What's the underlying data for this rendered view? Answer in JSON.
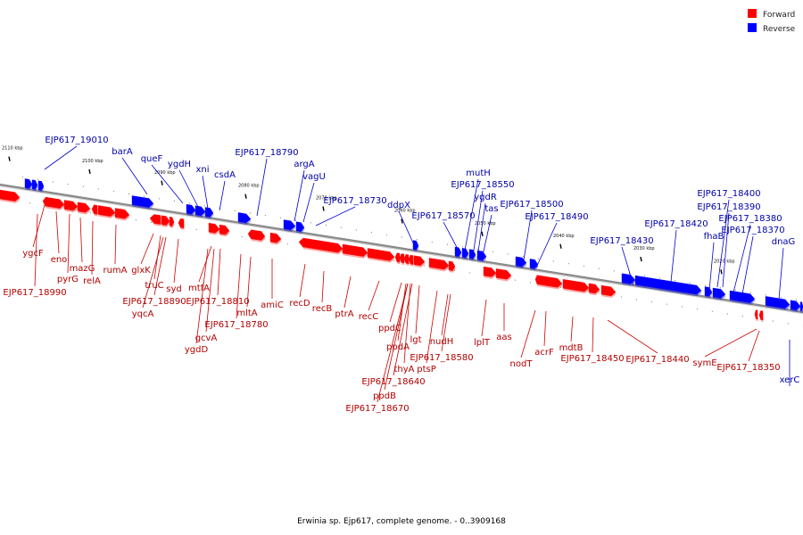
{
  "caption": "Erwinia sp. Ejp617, complete genome. - 0..3909168",
  "legend": {
    "items": [
      {
        "label": "Forward",
        "color": "#ff0000"
      },
      {
        "label": "Reverse",
        "color": "#0000ff"
      }
    ]
  },
  "colors": {
    "forward": "#ff0000",
    "reverse": "#0000ff",
    "forward_line": "#cc0000",
    "reverse_line": "#0000cc",
    "backbone": "#8a8a8a"
  },
  "scale_ticks": [
    "2110 kbp",
    "2100 kbp",
    "2090 kbp",
    "2080 kbp",
    "2070 kbp",
    "2060 kbp",
    "2050 kbp",
    "2040 kbp",
    "2030 kbp",
    "2020 kbp"
  ],
  "reverse_genes": [
    "EJP617_19010",
    "barA",
    "queF",
    "ygdH",
    "xni",
    "csdA",
    "EJP617_18790",
    "argA",
    "vagU",
    "EJP617_18730",
    "ddpX",
    "mutH",
    "EJP617_18550",
    "ygdR",
    "tas",
    "EJP617_18570",
    "EJP617_18500",
    "EJP617_18490",
    "EJP617_18400",
    "EJP617_18390",
    "EJP617_18380",
    "EJP617_18370",
    "EJP617_18420",
    "fhaB",
    "dnaG",
    "EJP617_18430",
    "xerC"
  ],
  "forward_genes": [
    "ygcF",
    "eno",
    "EJP617_18990",
    "pyrG",
    "mazG",
    "relA",
    "rumA",
    "glxK",
    "truC",
    "syd",
    "EJP617_18890",
    "yqcA",
    "mtfA",
    "EJP617_18810",
    "gcvA",
    "ygdD",
    "mltA",
    "EJP617_18780",
    "amiC",
    "recD",
    "recB",
    "ptrA",
    "recC",
    "ppdC",
    "ppdA",
    "lgt",
    "thyA",
    "ptsP",
    "EJP617_18640",
    "ppdB",
    "EJP617_18670",
    "nudH",
    "EJP617_18580",
    "lplT",
    "aas",
    "nodT",
    "acrF",
    "mdtB",
    "EJP617_18450",
    "EJP617_18440",
    "symE",
    "EJP617_18350"
  ]
}
